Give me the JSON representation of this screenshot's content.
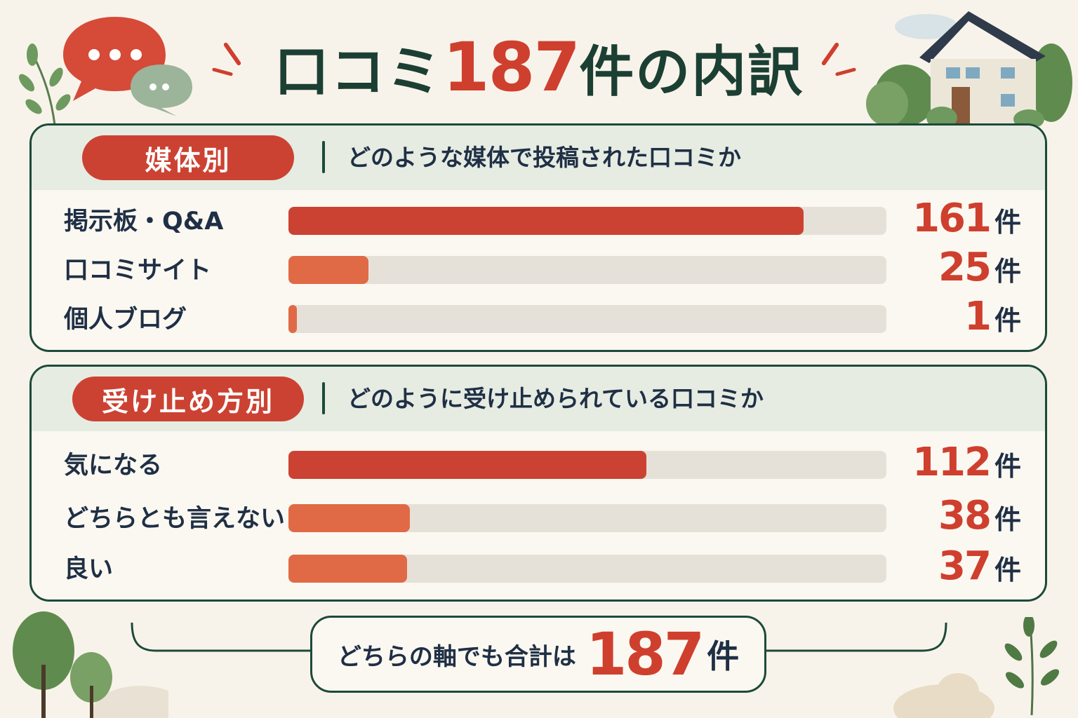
{
  "title": {
    "prefix": "口コミ",
    "number": "187",
    "suffix": "件の内訳"
  },
  "unit": "件",
  "colors": {
    "primary": "#cc4232",
    "secondary": "#e06a45",
    "track": "#e6e1d8",
    "border": "#1c4a3a",
    "header_bg": "#e6ece2",
    "background": "#f8f3ea"
  },
  "panels": [
    {
      "label": "媒体別",
      "subtitle": "どのような媒体で投稿された口コミか",
      "rows": [
        {
          "label": "掲示板・Q&A",
          "value": "161"
        },
        {
          "label": "口コミサイト",
          "value": "25"
        },
        {
          "label": "個人ブログ",
          "value": "1"
        }
      ]
    },
    {
      "label": "受け止め方別",
      "subtitle": "どのように受け止められている口コミか",
      "rows": [
        {
          "label": "気になる",
          "value": "112"
        },
        {
          "label": "どちらとも言えない",
          "value": "38"
        },
        {
          "label": "良い",
          "value": "37"
        }
      ]
    }
  ],
  "chart_data": [
    {
      "type": "bar",
      "title": "媒体別",
      "categories": [
        "掲示板・Q&A",
        "口コミサイト",
        "個人ブログ"
      ],
      "values": [
        161,
        25,
        1
      ],
      "xlim": [
        0,
        187
      ]
    },
    {
      "type": "bar",
      "title": "受け止め方別",
      "categories": [
        "気になる",
        "どちらとも言えない",
        "良い"
      ],
      "values": [
        112,
        38,
        37
      ],
      "xlim": [
        0,
        187
      ]
    }
  ],
  "total": {
    "text": "どちらの軸でも合計は",
    "number": "187",
    "unit": "件"
  },
  "icons": [
    "speech-bubble-red-icon",
    "speech-bubble-green-icon",
    "house-icon",
    "tree-icon",
    "leaf-branch-icon",
    "cloud-icon"
  ]
}
